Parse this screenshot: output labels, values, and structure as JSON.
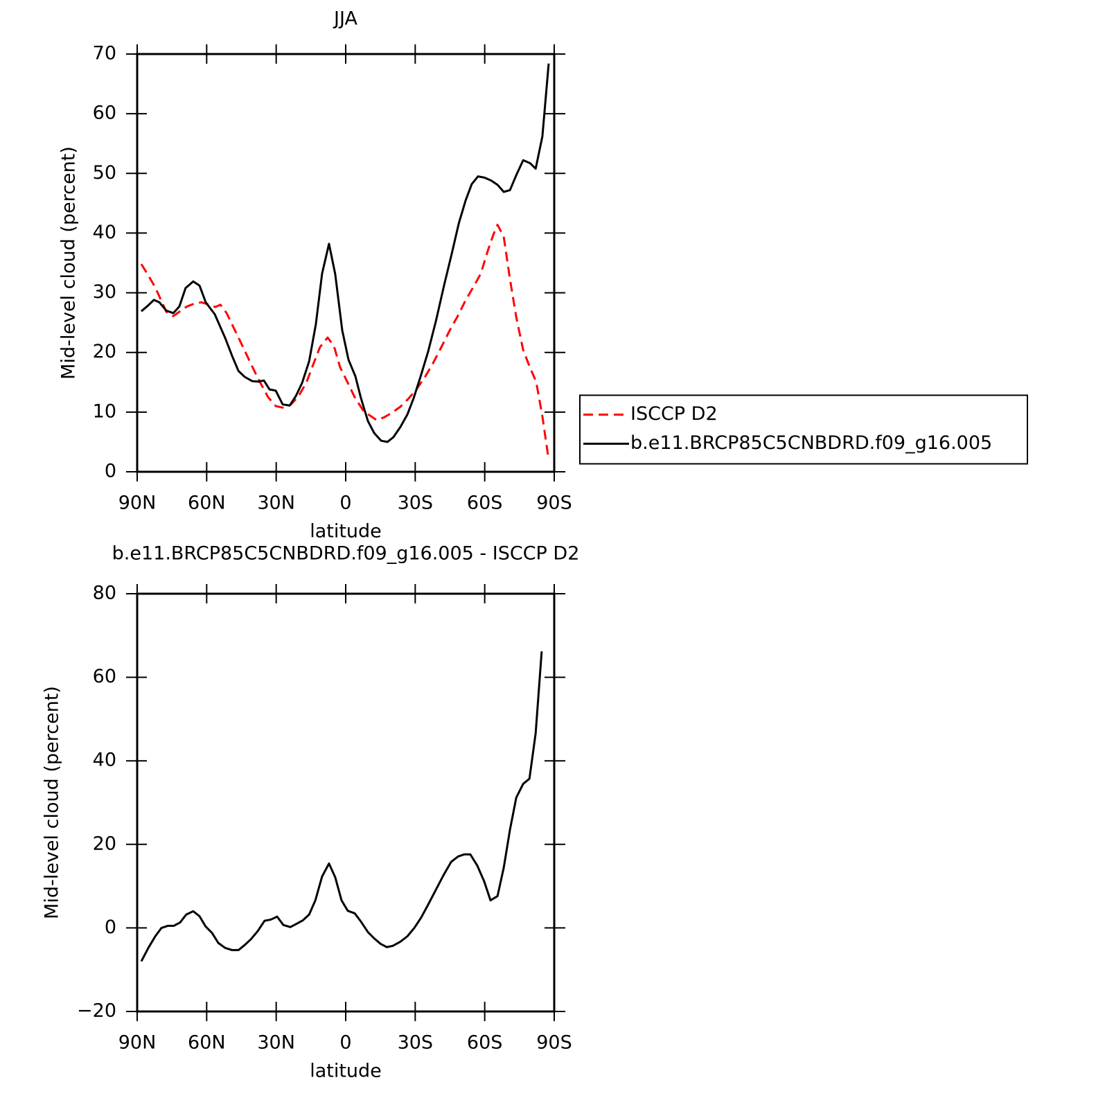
{
  "chart_data": [
    {
      "type": "line",
      "title": "JJA",
      "xlabel": "latitude",
      "ylabel": "Mid-level cloud (percent)",
      "xlim": [
        90,
        -90
      ],
      "xticks": [
        {
          "value": 90,
          "label": "90N"
        },
        {
          "value": 60,
          "label": "60N"
        },
        {
          "value": 30,
          "label": "30N"
        },
        0,
        {
          "value": -30,
          "label": "30S"
        },
        {
          "value": -60,
          "label": "60S"
        },
        {
          "value": -90,
          "label": "90S"
        }
      ],
      "ylim": [
        0,
        70
      ],
      "yticks": [
        0,
        10,
        20,
        30,
        40,
        50,
        60,
        70
      ],
      "legend": "right",
      "series": [
        {
          "name": "ISCCP D2",
          "color": "#ff0000",
          "style": "dashed",
          "x": [
            88.2,
            85.2,
            82.2,
            80.1,
            77.4,
            74.4,
            71.5,
            68.5,
            65.2,
            62.2,
            58.9,
            56.2,
            54.1,
            51.4,
            47.8,
            44.2,
            40.7,
            37.1,
            33.5,
            30.2,
            26.6,
            23.6,
            20.3,
            17.0,
            14.0,
            11.1,
            7.8,
            5.1,
            2.4,
            -0.9,
            -3.9,
            -7.5,
            -10.2,
            -13.2,
            -16.5,
            -20.0,
            -23.6,
            -27.2,
            -30.5,
            -34.1,
            -37.7,
            -41.3,
            -44.9,
            -48.5,
            -51.7,
            -55.3,
            -58.3,
            -61.3,
            -63.7,
            -65.5,
            -68.2,
            -70.9,
            -73.6,
            -76.6,
            -79.6,
            -82.2,
            -84.9,
            -87.6
          ],
          "values": [
            34.8,
            32.9,
            30.9,
            29.1,
            26.8,
            26.1,
            26.9,
            27.7,
            28.2,
            28.4,
            28.0,
            27.6,
            28.0,
            26.6,
            23.7,
            20.8,
            17.9,
            15.1,
            12.5,
            11.0,
            10.7,
            11.3,
            12.7,
            14.9,
            18.0,
            20.9,
            22.5,
            21.1,
            17.5,
            14.9,
            12.5,
            10.3,
            9.5,
            8.7,
            9.1,
            9.9,
            10.9,
            12.3,
            13.8,
            15.8,
            18.2,
            20.9,
            23.7,
            26.2,
            28.7,
            31.1,
            33.2,
            37.0,
            39.7,
            41.4,
            39.4,
            32.3,
            25.9,
            20.4,
            17.4,
            15.1,
            9.3,
            2.0
          ]
        },
        {
          "name": "b.e11.BRCP85C5CNBDRD.f09_g16.005",
          "color": "#000000",
          "style": "solid",
          "x": [
            88.2,
            85.2,
            82.8,
            80.4,
            77.4,
            74.4,
            71.8,
            69.1,
            65.8,
            63.1,
            60.4,
            56.5,
            52.0,
            49.0,
            46.3,
            43.6,
            40.4,
            37.7,
            35.3,
            32.9,
            30.2,
            27.2,
            24.2,
            21.5,
            18.8,
            15.8,
            12.9,
            10.2,
            7.2,
            4.5,
            1.5,
            -1.2,
            -4.2,
            -6.6,
            -9.6,
            -12.3,
            -15.3,
            -18.0,
            -20.6,
            -23.6,
            -26.6,
            -29.3,
            -32.6,
            -35.6,
            -38.9,
            -42.5,
            -45.8,
            -48.8,
            -51.7,
            -54.4,
            -57.1,
            -59.8,
            -62.8,
            -65.5,
            -68.2,
            -70.9,
            -73.6,
            -76.6,
            -79.6,
            -82.0,
            -84.9,
            -87.6
          ],
          "values": [
            26.9,
            27.9,
            28.8,
            28.4,
            27.0,
            26.6,
            27.7,
            30.8,
            31.9,
            31.2,
            28.4,
            26.4,
            22.4,
            19.4,
            16.9,
            15.9,
            15.2,
            15.1,
            15.3,
            13.8,
            13.6,
            11.3,
            11.1,
            12.7,
            14.9,
            18.5,
            24.7,
            33.2,
            38.2,
            33.1,
            23.7,
            18.8,
            16.0,
            12.3,
            8.5,
            6.5,
            5.2,
            5.0,
            5.8,
            7.5,
            9.6,
            12.3,
            16.3,
            20.2,
            25.2,
            31.3,
            36.6,
            41.6,
            45.4,
            48.2,
            49.5,
            49.3,
            48.8,
            48.1,
            46.9,
            47.2,
            49.7,
            52.2,
            51.7,
            50.8,
            56.2,
            68.4
          ]
        }
      ]
    },
    {
      "type": "line",
      "title": "b.e11.BRCP85C5CNBDRD.f09_g16.005 - ISCCP D2",
      "xlabel": "latitude",
      "ylabel": "Mid-level cloud (percent)",
      "xlim": [
        90,
        -90
      ],
      "xticks": [
        {
          "value": 90,
          "label": "90N"
        },
        {
          "value": 60,
          "label": "60N"
        },
        {
          "value": 30,
          "label": "30N"
        },
        0,
        {
          "value": -30,
          "label": "30S"
        },
        {
          "value": -60,
          "label": "60S"
        },
        {
          "value": -90,
          "label": "90S"
        }
      ],
      "ylim": [
        -20,
        80
      ],
      "yticks": [
        {
          "value": -20,
          "label": "−20"
        },
        0,
        20,
        40,
        60,
        80
      ],
      "series": [
        {
          "color": "#000000",
          "style": "solid",
          "x": [
            88.2,
            85.2,
            82.2,
            79.5,
            76.8,
            74.2,
            71.5,
            68.8,
            65.8,
            63.1,
            60.4,
            57.7,
            55.0,
            52.0,
            49.0,
            46.3,
            43.6,
            40.9,
            38.0,
            35.0,
            32.3,
            29.6,
            26.9,
            23.9,
            21.2,
            18.5,
            15.8,
            13.1,
            10.2,
            7.2,
            4.5,
            1.8,
            -0.9,
            -3.9,
            -6.6,
            -9.6,
            -12.3,
            -15.0,
            -17.7,
            -20.3,
            -23.6,
            -26.6,
            -29.6,
            -32.6,
            -35.6,
            -38.9,
            -42.2,
            -45.5,
            -48.5,
            -51.1,
            -53.8,
            -56.8,
            -59.8,
            -62.5,
            -65.5,
            -68.2,
            -70.9,
            -73.6,
            -76.6,
            -79.3,
            -82.0,
            -84.6
          ],
          "values": [
            -8.0,
            -4.8,
            -2.0,
            0.0,
            0.5,
            0.5,
            1.3,
            3.2,
            4.0,
            2.8,
            0.3,
            -1.2,
            -3.6,
            -4.8,
            -5.3,
            -5.3,
            -4.1,
            -2.7,
            -0.8,
            1.7,
            2.0,
            2.7,
            0.7,
            0.2,
            1.0,
            1.8,
            3.2,
            6.6,
            12.3,
            15.4,
            12.1,
            6.6,
            4.1,
            3.5,
            1.5,
            -1.0,
            -2.5,
            -3.8,
            -4.6,
            -4.3,
            -3.3,
            -2.0,
            0.0,
            2.5,
            5.6,
            9.1,
            12.6,
            15.8,
            17.1,
            17.6,
            17.6,
            14.9,
            11.1,
            6.6,
            7.6,
            14.4,
            23.5,
            31.2,
            34.5,
            35.7,
            46.6,
            66.2
          ]
        }
      ]
    }
  ]
}
